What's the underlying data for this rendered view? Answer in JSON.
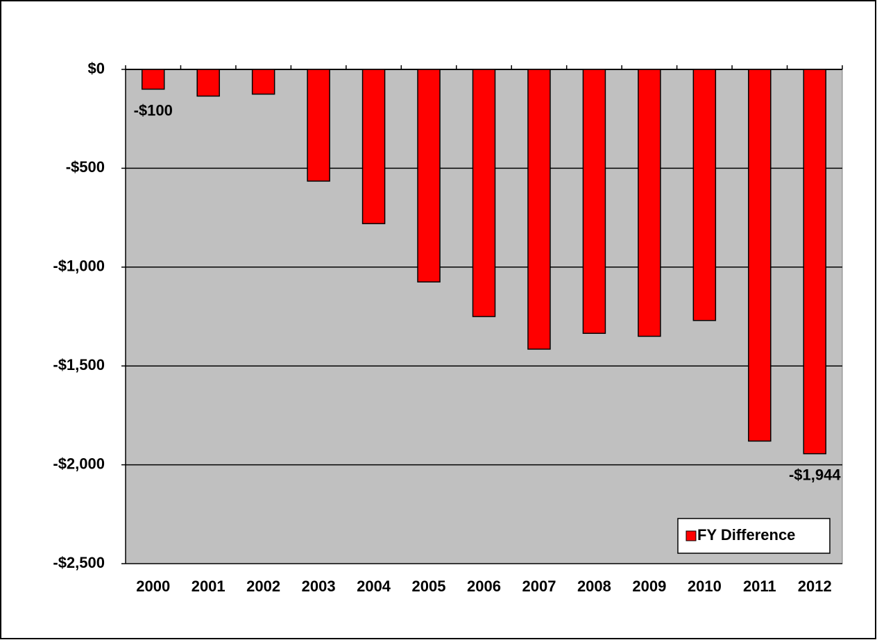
{
  "chart_data": {
    "type": "bar",
    "categories": [
      "2000",
      "2001",
      "2002",
      "2003",
      "2004",
      "2005",
      "2006",
      "2007",
      "2008",
      "2009",
      "2010",
      "2011",
      "2012"
    ],
    "series": [
      {
        "name": "FY Difference",
        "color": "#ff0000",
        "values": [
          -100,
          -135,
          -125,
          -565,
          -780,
          -1075,
          -1250,
          -1415,
          -1335,
          -1350,
          -1270,
          -1880,
          -1944
        ],
        "value_labels": [
          "-$100",
          null,
          null,
          null,
          null,
          null,
          null,
          null,
          null,
          null,
          null,
          null,
          "-$1,944"
        ]
      }
    ],
    "ylim": [
      -2500,
      0
    ],
    "yticks": [
      {
        "value": 0,
        "label": "$0"
      },
      {
        "value": -500,
        "label": "-$500"
      },
      {
        "value": -1000,
        "label": "-$1,000"
      },
      {
        "value": -1500,
        "label": "-$1,500"
      },
      {
        "value": -2000,
        "label": "-$2,000"
      },
      {
        "value": -2500,
        "label": "-$2,500"
      }
    ],
    "grid": true,
    "legend": "lower right"
  }
}
